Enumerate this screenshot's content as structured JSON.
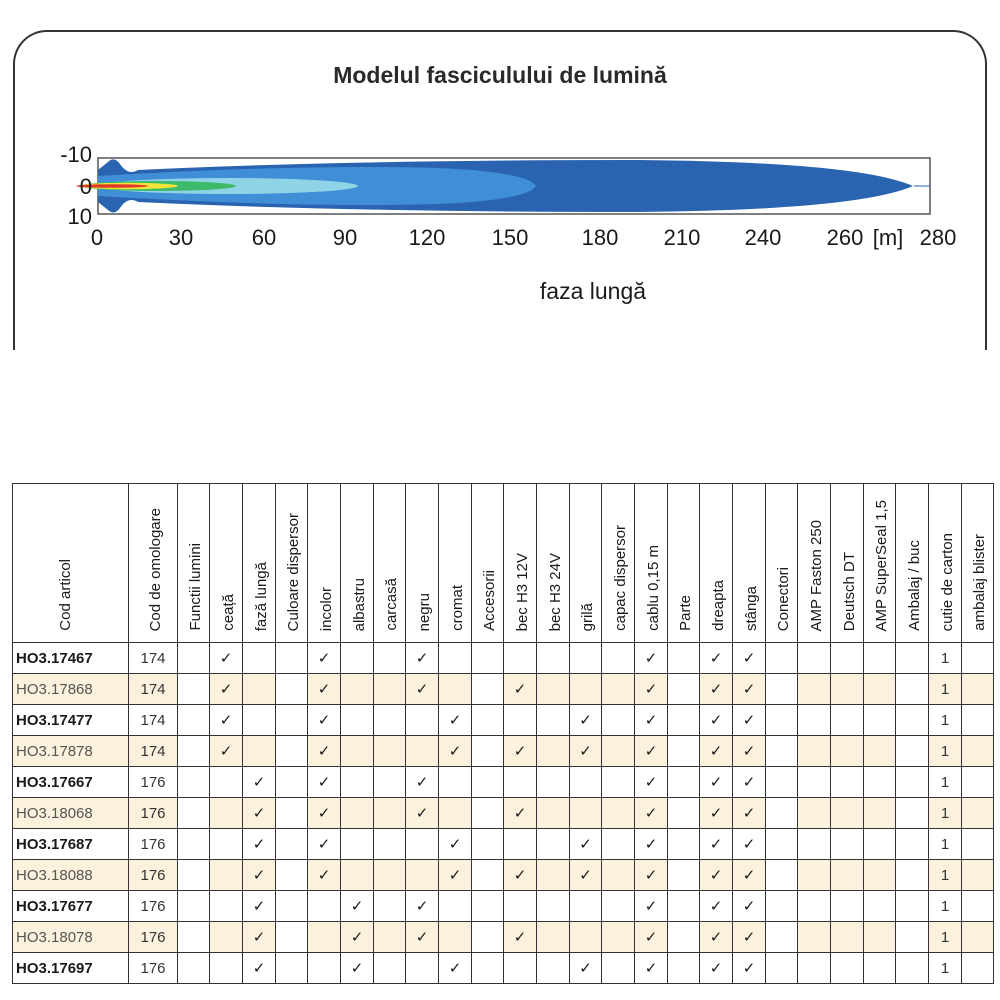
{
  "beam_chart": {
    "title": "Modelul fasciculului de lumină",
    "xlabel": "faza lungă",
    "x_unit": "[m]",
    "x_ticks": [
      "0",
      "30",
      "60",
      "90",
      "120",
      "150",
      "180",
      "210",
      "240",
      "260",
      "280"
    ],
    "y_ticks": [
      "-10",
      "0",
      "10"
    ],
    "colors": {
      "outer": "#2a63b0",
      "mid": "#3f8ed6",
      "light": "#8fd4e6",
      "green": "#3dba6a",
      "yellow": "#f3e43a",
      "red": "#e03a2a"
    }
  },
  "table": {
    "headers": [
      "Cod articol",
      "Cod de omologare",
      "Functii lumini",
      "ceață",
      "fază lungă",
      "Culoare dispersor",
      "incolor",
      "albastru",
      "carcasă",
      "negru",
      "cromat",
      "Accesorii",
      "bec H3 12V",
      "bec H3 24V",
      "grilă",
      "capac dispersor",
      "cablu 0,15 m",
      "Parte",
      "dreapta",
      "stânga",
      "Conectori",
      "AMP Faston 250",
      "Deutsch DT",
      "AMP SuperSeal 1,5",
      "Ambalaj / buc",
      "cutie de carton",
      "ambalaj blister"
    ],
    "rows": [
      {
        "code": "HO3.17467",
        "hom": "174",
        "checks": [
          3,
          6,
          9,
          16,
          18,
          19
        ],
        "carton": "1"
      },
      {
        "code": "HO3.17868",
        "hom": "174",
        "checks": [
          3,
          6,
          9,
          12,
          16,
          18,
          19
        ],
        "carton": "1"
      },
      {
        "code": "HO3.17477",
        "hom": "174",
        "checks": [
          3,
          6,
          10,
          14,
          16,
          18,
          19
        ],
        "carton": "1"
      },
      {
        "code": "HO3.17878",
        "hom": "174",
        "checks": [
          3,
          6,
          10,
          12,
          14,
          16,
          18,
          19
        ],
        "carton": "1"
      },
      {
        "code": "HO3.17667",
        "hom": "176",
        "checks": [
          4,
          6,
          9,
          16,
          18,
          19
        ],
        "carton": "1"
      },
      {
        "code": "HO3.18068",
        "hom": "176",
        "checks": [
          4,
          6,
          9,
          12,
          16,
          18,
          19
        ],
        "carton": "1"
      },
      {
        "code": "HO3.17687",
        "hom": "176",
        "checks": [
          4,
          6,
          10,
          14,
          16,
          18,
          19
        ],
        "carton": "1"
      },
      {
        "code": "HO3.18088",
        "hom": "176",
        "checks": [
          4,
          6,
          10,
          12,
          14,
          16,
          18,
          19
        ],
        "carton": "1"
      },
      {
        "code": "HO3.17677",
        "hom": "176",
        "checks": [
          4,
          7,
          9,
          16,
          18,
          19
        ],
        "carton": "1"
      },
      {
        "code": "HO3.18078",
        "hom": "176",
        "checks": [
          4,
          7,
          9,
          12,
          16,
          18,
          19
        ],
        "carton": "1"
      },
      {
        "code": "HO3.17697",
        "hom": "176",
        "checks": [
          4,
          7,
          10,
          14,
          16,
          18,
          19
        ],
        "carton": "1"
      }
    ],
    "check_symbol": "✓"
  }
}
